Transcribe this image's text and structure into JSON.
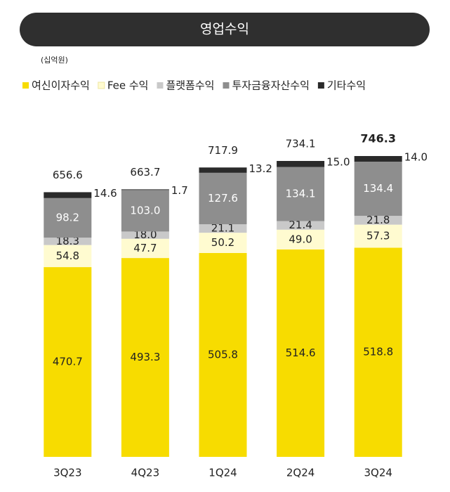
{
  "chart_data": {
    "type": "stacked_bar",
    "title": "영업수익",
    "unit": "(십억원)",
    "categories": [
      "3Q23",
      "4Q23",
      "1Q24",
      "2Q24",
      "3Q24"
    ],
    "series": [
      {
        "name": "여신이자수익",
        "color": "#f7dc00",
        "values": [
          470.7,
          493.3,
          505.8,
          514.6,
          518.8
        ],
        "value_labels": [
          "470.7",
          "493.3",
          "505.8",
          "514.6",
          "518.8"
        ]
      },
      {
        "name": "Fee 수익",
        "color": "#fffbd0",
        "values": [
          54.8,
          47.7,
          50.2,
          49.0,
          57.3
        ],
        "value_labels": [
          "54.8",
          "47.7",
          "50.2",
          "49.0",
          "57.3"
        ]
      },
      {
        "name": "플랫폼수익",
        "color": "#c9c9c9",
        "values": [
          18.3,
          18.0,
          21.1,
          21.4,
          21.8
        ],
        "value_labels": [
          "18.3",
          "18.0",
          "21.1",
          "21.4",
          "21.8"
        ]
      },
      {
        "name": "투자금융자산수익",
        "color": "#8e8e8e",
        "values": [
          98.2,
          103.0,
          127.6,
          134.1,
          134.4
        ],
        "value_labels": [
          "98.2",
          "103.0",
          "127.6",
          "134.1",
          "134.4"
        ]
      },
      {
        "name": "기타수익",
        "color": "#2a2a2a",
        "values": [
          14.6,
          1.7,
          13.2,
          15.0,
          14.0
        ],
        "value_labels": [
          "14.6",
          "1.7",
          "13.2",
          "15.0",
          "14.0"
        ]
      }
    ],
    "totals": [
      656.6,
      663.7,
      717.9,
      734.1,
      746.3
    ]
  }
}
